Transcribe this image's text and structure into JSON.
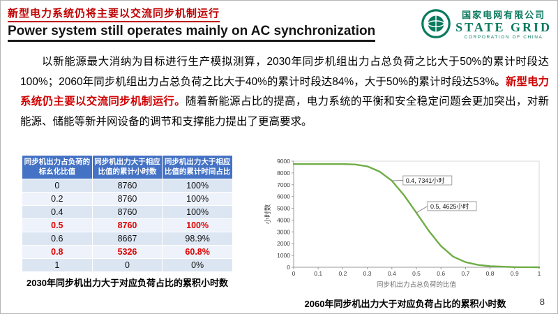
{
  "header": {
    "title_cn": "新型电力系统仍将主要以交流同步机制运行",
    "title_en": "Power system still operates mainly on AC synchronization",
    "logo": {
      "company_cn": "国家电网有限公司",
      "company_en": "STATE GRID",
      "company_sub": "CORPORATION OF CHINA"
    }
  },
  "body": {
    "p_part1": "以新能源最大消纳为目标进行生产模拟测算，2030年同步机组出力占总负荷之比大于50%的累计时段达100%；2060年同步机组出力占总负荷之比大于40%的累计时段达84%，大于50%的累计时段达53%。",
    "p_red": "新型电力系统仍主要以交流同步机制运行。",
    "p_part2": "随着新能源占比的提高，电力系统的平衡和安全稳定问题会更加突出，对新能源、储能等新并网设备的调节和支撑能力提出了更高要求。"
  },
  "table": {
    "headers": [
      "同步机出力占负荷的标幺化比值",
      "同步机出力大于相应比值的累计小时数",
      "同步机出力大于相应比值的累计时间占比"
    ],
    "rows": [
      [
        "0",
        "8760",
        "100%"
      ],
      [
        "0.2",
        "8760",
        "100%"
      ],
      [
        "0.4",
        "8760",
        "100%"
      ],
      [
        "0.5",
        "8760",
        "100%"
      ],
      [
        "0.6",
        "8667",
        "98.9%"
      ],
      [
        "0.8",
        "5326",
        "60.8%"
      ],
      [
        "1",
        "0",
        "0%"
      ]
    ],
    "highlight_rows": [
      3,
      5
    ],
    "caption": "2030年同步机出力大于对应负荷占比的累积小时数"
  },
  "chart": {
    "caption": "2060年同步机出力大于对应负荷占比的累积小时数"
  },
  "chart_data": {
    "type": "line",
    "title": "",
    "xlabel": "同步机出力占总负荷的比值",
    "ylabel": "小时数",
    "xlim": [
      0,
      1
    ],
    "ylim": [
      0,
      9000
    ],
    "x_ticks": [
      0,
      0.1,
      0.2,
      0.3,
      0.4,
      0.5,
      0.6,
      0.7,
      0.8,
      0.9,
      1
    ],
    "y_ticks": [
      0,
      1000,
      2000,
      3000,
      4000,
      5000,
      6000,
      7000,
      8000,
      9000
    ],
    "x": [
      0,
      0.1,
      0.2,
      0.25,
      0.3,
      0.35,
      0.4,
      0.45,
      0.5,
      0.55,
      0.6,
      0.65,
      0.7,
      0.75,
      0.8,
      0.9,
      1
    ],
    "y": [
      8760,
      8760,
      8755,
      8720,
      8560,
      8120,
      7341,
      6100,
      4625,
      3100,
      1800,
      900,
      430,
      200,
      90,
      10,
      0
    ],
    "line_color": "#70ad47",
    "grid": false,
    "annotations": [
      {
        "x": 0.4,
        "y": 7341,
        "label": "0.4, 7341小时"
      },
      {
        "x": 0.5,
        "y": 4625,
        "label": "0.5, 4625小时"
      }
    ]
  },
  "footer": {
    "page_number": "8"
  }
}
